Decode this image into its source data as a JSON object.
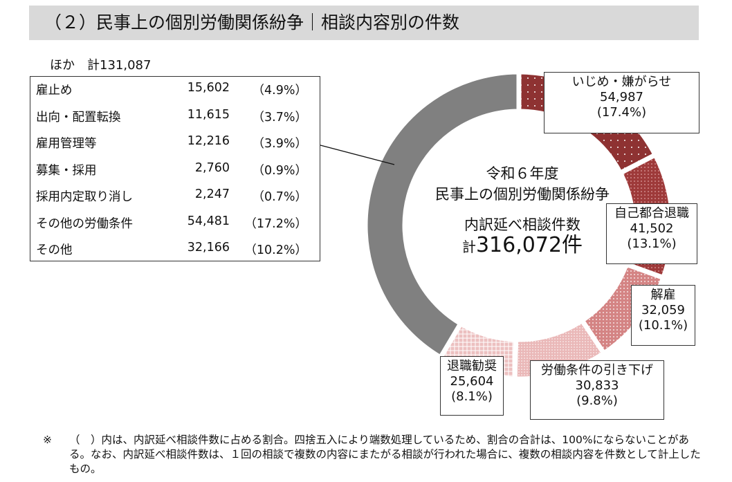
{
  "title": "（２）民事上の個別労働関係紛争｜相談内容別の件数",
  "others": {
    "total_label": "ほか　計131,087",
    "rows": [
      {
        "label": "雇止め",
        "value": "15,602",
        "pct": "（4.9%）"
      },
      {
        "label": "出向・配置転換",
        "value": "11,615",
        "pct": "（3.7%）"
      },
      {
        "label": "雇用管理等",
        "value": "12,216",
        "pct": "（3.9%）"
      },
      {
        "label": "募集・採用",
        "value": "2,760",
        "pct": "（0.9%）"
      },
      {
        "label": "採用内定取り消し",
        "value": "2,247",
        "pct": "（0.7%）"
      },
      {
        "label": "その他の労働条件",
        "value": "54,481",
        "pct": "（17.2%）"
      },
      {
        "label": "その他",
        "value": "32,166",
        "pct": "（10.2%）"
      }
    ]
  },
  "center": {
    "line1": "令和６年度",
    "line2": "民事上の個別労働関係紛争",
    "line3": "内訳延べ相談件数",
    "total_prefix": "計",
    "total_value": "316,072件"
  },
  "chart_data": {
    "type": "pie",
    "donut": true,
    "start": "12 o'clock",
    "direction": "clockwise",
    "total": 316072,
    "slices": [
      {
        "label": "いじめ・嫌がらせ",
        "value": 54987,
        "value_text": "54,987",
        "pct_text": "(17.4%)",
        "color": "#8e3232"
      },
      {
        "label": "自己都合退職",
        "value": 41502,
        "value_text": "41,502",
        "pct_text": "(13.1%)",
        "color": "#9e3a3a"
      },
      {
        "label": "解雇",
        "value": 32059,
        "value_text": "32,059",
        "pct_text": "(10.1%)",
        "color": "#d48484"
      },
      {
        "label": "労働条件の引き下げ",
        "value": 30833,
        "value_text": "30,833",
        "pct_text": "(9.8%)",
        "color": "#eab8b8"
      },
      {
        "label": "退職勧奨",
        "value": 25604,
        "value_text": "25,604",
        "pct_text": "(8.1%)",
        "color": "#ecc0c0"
      },
      {
        "label": "ほか",
        "value": 131087,
        "color": "#808080"
      }
    ]
  },
  "note": {
    "mark": "※",
    "text": "（　）内は、内訳延べ相談件数に占める割合。四捨五入により端数処理しているため、割合の合計は、100%にならないことがある。なお、内訳延べ相談件数は、１回の相談で複数の内容にまたがる相談が行われた場合に、複数の相談内容を件数として計上したもの。"
  }
}
